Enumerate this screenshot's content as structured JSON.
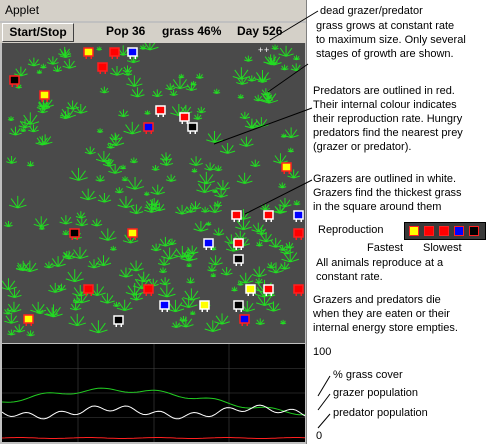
{
  "applet": {
    "title": "Applet"
  },
  "controls": {
    "start_stop_label": "Start/Stop",
    "pop_label": "Pop 36",
    "grass_label": "grass 46%",
    "day_label": "Day 526"
  },
  "world": {
    "background": "#4a4a4a",
    "grass_color": "#22dd22",
    "grazer_outline": "#ffffff",
    "predator_outline": "#ff2020",
    "reproduction_colors": [
      "#ffff00",
      "#ff0000",
      "#ff0000",
      "#0000ff",
      "#000000"
    ]
  },
  "graph": {
    "background": "#000000",
    "series": [
      {
        "name": "% grass cover",
        "color": "#22cc22"
      },
      {
        "name": "grazer population",
        "color": "#ffffff"
      },
      {
        "name": "predator population",
        "color": "#ff2020"
      }
    ]
  },
  "annotations": {
    "dead": "dead grazer/predator",
    "grass_lines": [
      "grass grows at constant rate",
      "to maximum size. Only several",
      "stages of growth are shown."
    ],
    "predator_lines": [
      "Predators are outlined in red.",
      "Their internal colour indicates",
      "their reproduction rate. Hungry",
      "predators find the nearest prey",
      "(grazer or predator)."
    ],
    "grazer_lines": [
      "Grazers are outlined in white.",
      "Grazers find the thickest grass",
      "in the square around them"
    ],
    "reproduction": "Reproduction",
    "fastest": "Fastest",
    "slowest": "Slowest",
    "reproduce_lines": [
      "All animals reproduce at a",
      "constant rate."
    ],
    "die_lines": [
      "Grazers and predators die",
      "when they are eaten or their",
      "internal energy store empties."
    ],
    "axis_max": "100",
    "axis_min": "0",
    "legend_grass": "% grass cover",
    "legend_grazer": "grazer population",
    "legend_predator": "predator population"
  }
}
